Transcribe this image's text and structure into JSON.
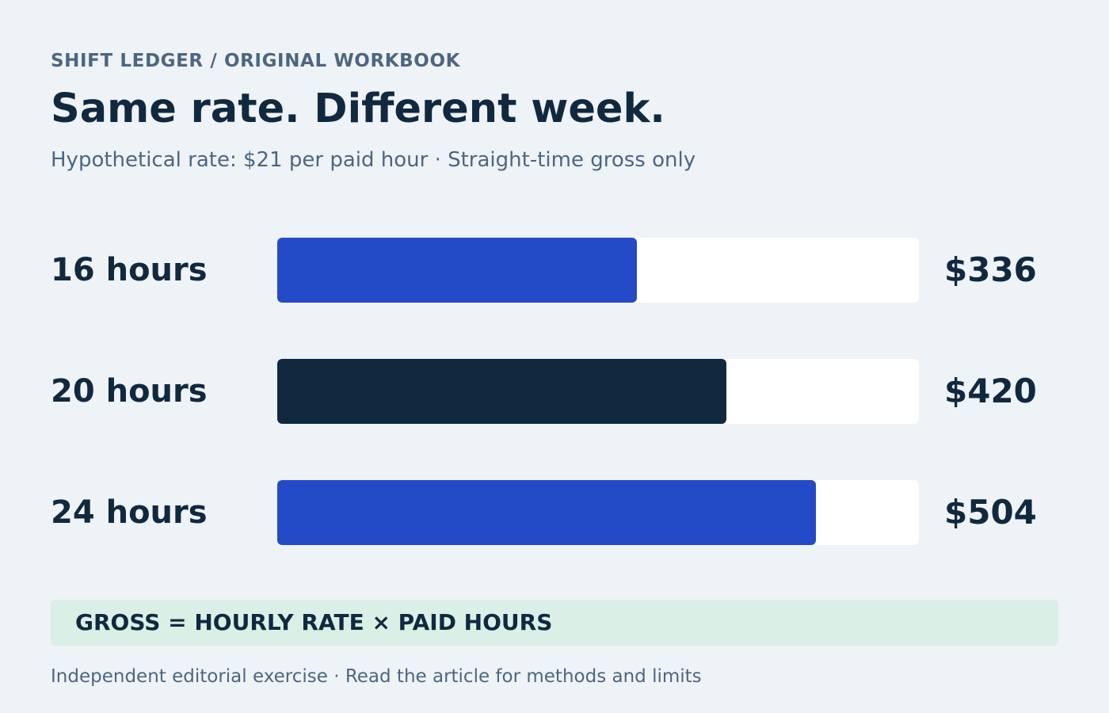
{
  "header": {
    "kicker": "SHIFT LEDGER / ORIGINAL WORKBOOK",
    "title": "Same rate. Different week.",
    "subtitle": "Hypothetical rate: $21 per paid hour · Straight-time gross only"
  },
  "colors": {
    "background": "#eef3f8",
    "accent_blue": "#234bc7",
    "highlight_navy": "#10293f",
    "track": "#ffffff",
    "formula_bg": "#daefe6",
    "muted_text": "#4d6680"
  },
  "chart_data": {
    "type": "bar",
    "orientation": "horizontal",
    "categories": [
      "16 hours",
      "20 hours",
      "24 hours"
    ],
    "values": [
      336,
      420,
      504
    ],
    "value_labels": [
      "$336",
      "$420",
      "$504"
    ],
    "bar_colors": [
      "#234bc7",
      "#10293f",
      "#234bc7"
    ],
    "xlim": [
      0,
      600
    ],
    "grid": false,
    "legend": "none"
  },
  "formula": {
    "text": "GROSS = HOURLY RATE × PAID HOURS"
  },
  "footer": {
    "text": "Independent editorial exercise · Read the article for methods and limits"
  }
}
